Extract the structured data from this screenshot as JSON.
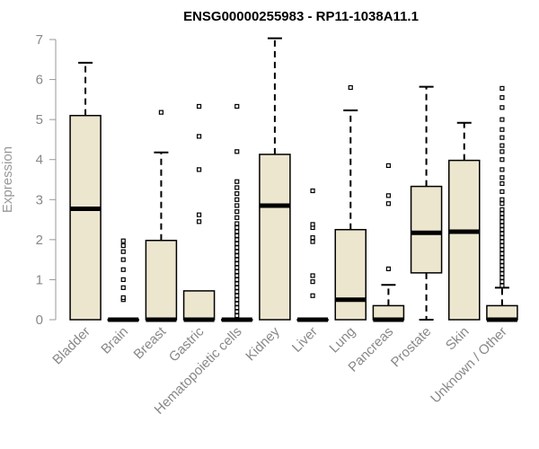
{
  "chart_data": {
    "type": "boxplot",
    "title": "ENSG00000255983 - RP11-1038A11.1",
    "xlabel": "",
    "ylabel": "Expression",
    "ylim": [
      0,
      7
    ],
    "yticks": [
      0,
      1,
      2,
      3,
      4,
      5,
      6,
      7
    ],
    "box_fill": "#ede6cf",
    "categories": [
      "Bladder",
      "Brain",
      "Breast",
      "Gastric",
      "Hematopoietic cells",
      "Kidney",
      "Liver",
      "Lung",
      "Pancreas",
      "Prostate",
      "Skin",
      "Unknown / Other"
    ],
    "boxes": [
      {
        "category": "Bladder",
        "q1": 0,
        "median": 2.77,
        "q3": 5.1,
        "whisker_low": 0,
        "whisker_high": 6.42,
        "outliers": []
      },
      {
        "category": "Brain",
        "q1": 0,
        "median": 0,
        "q3": 0,
        "whisker_low": 0,
        "whisker_high": 0,
        "outliers": [
          0.5,
          0.55,
          0.8,
          1.0,
          1.25,
          1.5,
          1.7,
          1.85,
          1.97
        ]
      },
      {
        "category": "Breast",
        "q1": 0,
        "median": 0,
        "q3": 1.98,
        "whisker_low": 0,
        "whisker_high": 4.18,
        "outliers": [
          5.18
        ]
      },
      {
        "category": "Gastric",
        "q1": 0,
        "median": 0,
        "q3": 0.72,
        "whisker_low": 0,
        "whisker_high": 0.72,
        "outliers": [
          2.45,
          2.62,
          3.75,
          4.58,
          5.33
        ]
      },
      {
        "category": "Hematopoietic cells",
        "q1": 0,
        "median": 0,
        "q3": 0,
        "whisker_low": 0,
        "whisker_high": 0,
        "outliers": [
          0.1,
          0.2,
          0.3,
          0.4,
          0.5,
          0.6,
          0.7,
          0.8,
          0.9,
          1.0,
          1.1,
          1.2,
          1.3,
          1.4,
          1.5,
          1.6,
          1.7,
          1.8,
          1.9,
          2.0,
          2.1,
          2.2,
          2.3,
          2.4,
          2.55,
          2.7,
          2.85,
          3.0,
          3.15,
          3.3,
          3.45,
          4.2,
          5.33
        ]
      },
      {
        "category": "Kidney",
        "q1": 0,
        "median": 2.85,
        "q3": 4.13,
        "whisker_low": 0,
        "whisker_high": 7.03,
        "outliers": []
      },
      {
        "category": "Liver",
        "q1": 0,
        "median": 0,
        "q3": 0,
        "whisker_low": 0,
        "whisker_high": 0,
        "outliers": [
          0.6,
          0.95,
          1.1,
          1.95,
          2.05,
          2.3,
          2.38,
          3.22
        ]
      },
      {
        "category": "Lung",
        "q1": 0,
        "median": 0.5,
        "q3": 2.25,
        "whisker_low": 0,
        "whisker_high": 5.23,
        "outliers": [
          5.8
        ]
      },
      {
        "category": "Pancreas",
        "q1": 0,
        "median": 0,
        "q3": 0.35,
        "whisker_low": 0,
        "whisker_high": 0.87,
        "outliers": [
          1.27,
          2.9,
          3.1,
          3.85
        ]
      },
      {
        "category": "Prostate",
        "q1": 1.17,
        "median": 2.17,
        "q3": 3.33,
        "whisker_low": 0,
        "whisker_high": 5.82,
        "outliers": []
      },
      {
        "category": "Skin",
        "q1": 0,
        "median": 2.2,
        "q3": 3.98,
        "whisker_low": 0,
        "whisker_high": 4.92,
        "outliers": []
      },
      {
        "category": "Unknown / Other",
        "q1": 0,
        "median": 0,
        "q3": 0.35,
        "whisker_low": 0,
        "whisker_high": 0.8,
        "outliers": [
          0.85,
          0.95,
          1.05,
          1.15,
          1.25,
          1.35,
          1.45,
          1.55,
          1.65,
          1.75,
          1.85,
          1.95,
          2.05,
          2.15,
          2.25,
          2.35,
          2.45,
          2.55,
          2.65,
          2.75,
          2.9,
          3.0,
          3.2,
          3.4,
          3.55,
          3.75,
          4.0,
          4.2,
          4.35,
          4.55,
          4.75,
          5.0,
          5.3,
          5.55,
          5.78
        ]
      }
    ]
  }
}
